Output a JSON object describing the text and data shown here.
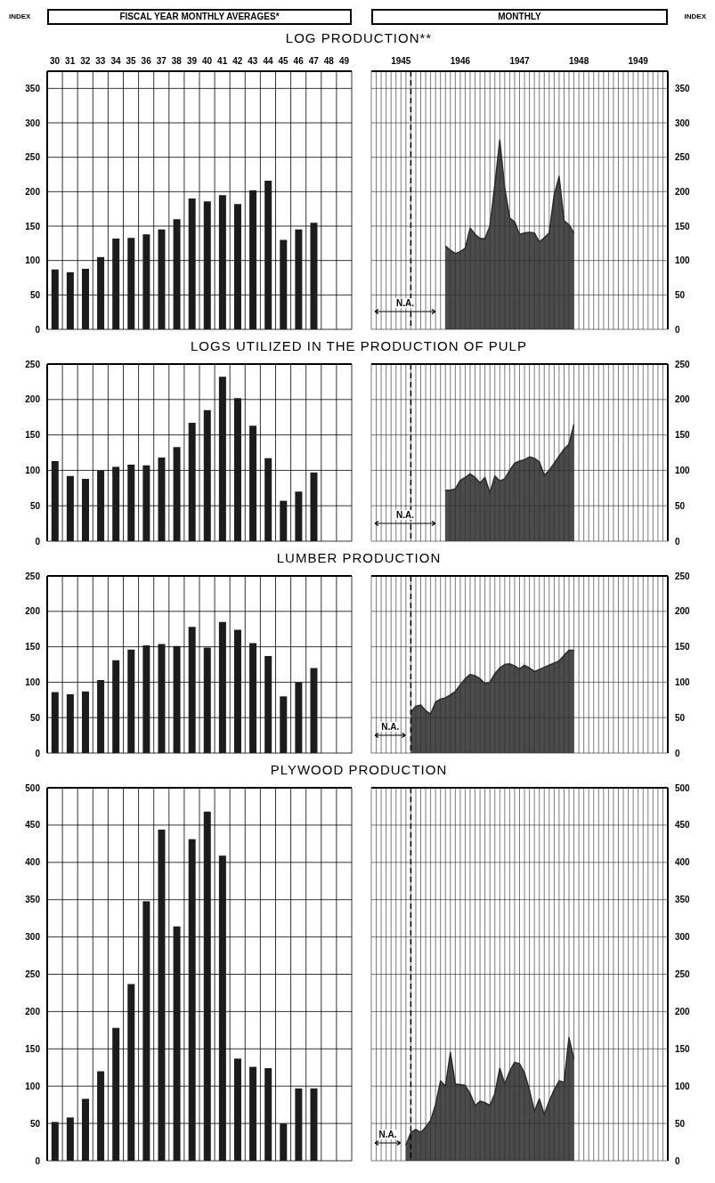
{
  "chart_data": [
    {
      "type": "bar",
      "title": "LOG PRODUCTION**",
      "xlabel": "FISCAL YEAR MONTHLY AVERAGES*",
      "ylabel": "INDEX",
      "categories": [
        "30",
        "31",
        "32",
        "33",
        "34",
        "35",
        "36",
        "37",
        "38",
        "39",
        "40",
        "41",
        "42",
        "43",
        "44",
        "45",
        "46",
        "47",
        "48",
        "49"
      ],
      "values": [
        87,
        83,
        88,
        105,
        132,
        133,
        138,
        145,
        160,
        190,
        186,
        195,
        182,
        202,
        216,
        130,
        145,
        155,
        null,
        null
      ],
      "color": "#1c1c1c",
      "ylim": [
        0,
        375
      ],
      "yticks": [
        0,
        50,
        100,
        150,
        200,
        250,
        300,
        350
      ],
      "grid": true
    },
    {
      "type": "area",
      "xlabel": "MONTHLY",
      "ylabel": "INDEX",
      "x": [
        "1946-04",
        "1946-05",
        "1946-06",
        "1946-07",
        "1946-08",
        "1946-09",
        "1946-10",
        "1946-11",
        "1946-12",
        "1947-01",
        "1947-02",
        "1947-03",
        "1947-04",
        "1947-05",
        "1947-06",
        "1947-07",
        "1947-08",
        "1947-09",
        "1947-10",
        "1947-11",
        "1947-12",
        "1948-01",
        "1948-02",
        "1948-03",
        "1948-04",
        "1948-05",
        "1948-06"
      ],
      "values": [
        121,
        115,
        110,
        113,
        118,
        147,
        138,
        132,
        132,
        150,
        210,
        275,
        205,
        162,
        156,
        138,
        140,
        141,
        140,
        127,
        133,
        140,
        195,
        222,
        158,
        152,
        140
      ],
      "color": "#2b2b2b",
      "xlim": [
        "1945-01",
        "1950-01"
      ],
      "xticks": [
        {
          "value": "1945-07",
          "label": "1945"
        },
        {
          "value": "1946-07",
          "label": "1946"
        },
        {
          "value": "1947-07",
          "label": "1947"
        },
        {
          "value": "1948-07",
          "label": "1948"
        },
        {
          "value": "1949-07",
          "label": "1949"
        }
      ],
      "ylim": [
        0,
        375
      ],
      "yticks": [
        0,
        50,
        100,
        150,
        200,
        250,
        300,
        350
      ],
      "grid": true,
      "annotations": [
        "N.A."
      ],
      "ref_lines": [
        {
          "axis": "x",
          "value": "1945-09",
          "line_style": "dashed",
          "color": "#000000"
        }
      ]
    },
    {
      "type": "bar",
      "title": "LOGS UTILIZED IN THE PRODUCTION OF PULP",
      "categories": [
        "30",
        "31",
        "32",
        "33",
        "34",
        "35",
        "36",
        "37",
        "38",
        "39",
        "40",
        "41",
        "42",
        "43",
        "44",
        "45",
        "46",
        "47",
        "48",
        "49"
      ],
      "values": [
        113,
        92,
        88,
        100,
        105,
        108,
        107,
        118,
        133,
        167,
        185,
        232,
        202,
        163,
        117,
        57,
        70,
        97,
        null,
        null
      ],
      "color": "#1c1c1c",
      "ylim": [
        0,
        250
      ],
      "yticks": [
        0,
        50,
        100,
        150,
        200,
        250
      ],
      "grid": true,
      "tick_labels": "y"
    },
    {
      "type": "area",
      "x": [
        "1946-04",
        "1946-05",
        "1946-06",
        "1946-07",
        "1946-08",
        "1946-09",
        "1946-10",
        "1946-11",
        "1946-12",
        "1947-01",
        "1947-02",
        "1947-03",
        "1947-04",
        "1947-05",
        "1947-06",
        "1947-07",
        "1947-08",
        "1947-09",
        "1947-10",
        "1947-11",
        "1947-12",
        "1948-01",
        "1948-02",
        "1948-03",
        "1948-04",
        "1948-05",
        "1948-06"
      ],
      "values": [
        72,
        72,
        74,
        86,
        90,
        95,
        90,
        82,
        90,
        68,
        92,
        85,
        88,
        100,
        110,
        113,
        115,
        119,
        117,
        112,
        93,
        100,
        110,
        120,
        130,
        137,
        165
      ],
      "color": "#2b2b2b",
      "xlim": [
        "1945-01",
        "1950-01"
      ],
      "ylim": [
        0,
        250
      ],
      "yticks": [
        0,
        50,
        100,
        150,
        200,
        250
      ],
      "grid": true,
      "tick_labels": "y",
      "annotations": [
        "N.A."
      ],
      "ref_lines": [
        {
          "axis": "x",
          "value": "1945-09",
          "line_style": "dashed",
          "color": "#000000"
        }
      ]
    },
    {
      "type": "bar",
      "title": "LUMBER PRODUCTION",
      "categories": [
        "30",
        "31",
        "32",
        "33",
        "34",
        "35",
        "36",
        "37",
        "38",
        "39",
        "40",
        "41",
        "42",
        "43",
        "44",
        "45",
        "46",
        "47",
        "48",
        "49"
      ],
      "values": [
        86,
        83,
        87,
        103,
        131,
        146,
        152,
        154,
        151,
        178,
        149,
        185,
        174,
        155,
        137,
        80,
        100,
        120,
        null,
        null
      ],
      "color": "#1c1c1c",
      "ylim": [
        0,
        250
      ],
      "yticks": [
        0,
        50,
        100,
        150,
        200,
        250
      ],
      "grid": true,
      "tick_labels": "y"
    },
    {
      "type": "area",
      "x": [
        "1945-09",
        "1945-10",
        "1945-11",
        "1945-12",
        "1946-01",
        "1946-02",
        "1946-03",
        "1946-04",
        "1946-05",
        "1946-06",
        "1946-07",
        "1946-08",
        "1946-09",
        "1946-10",
        "1946-11",
        "1946-12",
        "1947-01",
        "1947-02",
        "1947-03",
        "1947-04",
        "1947-05",
        "1947-06",
        "1947-07",
        "1947-08",
        "1947-09",
        "1947-10",
        "1947-11",
        "1947-12",
        "1948-01",
        "1948-02",
        "1948-03",
        "1948-04",
        "1948-05",
        "1948-06"
      ],
      "values": [
        58,
        66,
        68,
        60,
        55,
        72,
        76,
        78,
        82,
        87,
        96,
        105,
        111,
        109,
        105,
        98,
        100,
        112,
        120,
        125,
        126,
        123,
        119,
        124,
        120,
        115,
        118,
        121,
        124,
        127,
        130,
        138,
        145,
        145
      ],
      "color": "#2b2b2b",
      "xlim": [
        "1945-01",
        "1950-01"
      ],
      "ylim": [
        0,
        250
      ],
      "yticks": [
        0,
        50,
        100,
        150,
        200,
        250
      ],
      "grid": true,
      "tick_labels": "y",
      "annotations": [
        "N.A."
      ],
      "ref_lines": [
        {
          "axis": "x",
          "value": "1945-09",
          "line_style": "dashed",
          "color": "#000000"
        }
      ]
    },
    {
      "type": "bar",
      "title": "PLYWOOD PRODUCTION",
      "categories": [
        "30",
        "31",
        "32",
        "33",
        "34",
        "35",
        "36",
        "37",
        "38",
        "39",
        "40",
        "41",
        "42",
        "43",
        "44",
        "45",
        "46",
        "47",
        "48",
        "49"
      ],
      "values": [
        52,
        58,
        83,
        120,
        178,
        237,
        348,
        444,
        314,
        431,
        468,
        409,
        137,
        126,
        124,
        50,
        97,
        97,
        null,
        null
      ],
      "color": "#1c1c1c",
      "ylim": [
        0,
        500
      ],
      "yticks": [
        0,
        50,
        100,
        150,
        200,
        250,
        300,
        350,
        400,
        450,
        500
      ],
      "grid": true,
      "tick_labels": "y"
    },
    {
      "type": "area",
      "x": [
        "1945-08",
        "1945-09",
        "1945-10",
        "1945-11",
        "1945-12",
        "1946-01",
        "1946-02",
        "1946-03",
        "1946-04",
        "1946-05",
        "1946-06",
        "1946-07",
        "1946-08",
        "1946-09",
        "1946-10",
        "1946-11",
        "1946-12",
        "1947-01",
        "1947-02",
        "1947-03",
        "1947-04",
        "1947-05",
        "1947-06",
        "1947-07",
        "1947-08",
        "1947-09",
        "1947-10",
        "1947-11",
        "1947-12",
        "1948-01",
        "1948-02",
        "1948-03",
        "1948-04",
        "1948-05",
        "1948-06"
      ],
      "values": [
        21,
        38,
        42,
        38,
        45,
        54,
        75,
        107,
        100,
        145,
        103,
        102,
        101,
        90,
        74,
        80,
        78,
        74,
        90,
        124,
        103,
        120,
        132,
        130,
        118,
        95,
        66,
        83,
        62,
        80,
        95,
        107,
        105,
        165,
        136
      ],
      "color": "#2b2b2b",
      "xlim": [
        "1945-01",
        "1950-01"
      ],
      "ylim": [
        0,
        500
      ],
      "yticks": [
        0,
        50,
        100,
        150,
        200,
        250,
        300,
        350,
        400,
        450,
        500
      ],
      "grid": true,
      "tick_labels": "y",
      "annotations": [
        "N.A."
      ],
      "ref_lines": [
        {
          "axis": "x",
          "value": "1945-09",
          "line_style": "dashed",
          "color": "#000000"
        }
      ]
    }
  ]
}
